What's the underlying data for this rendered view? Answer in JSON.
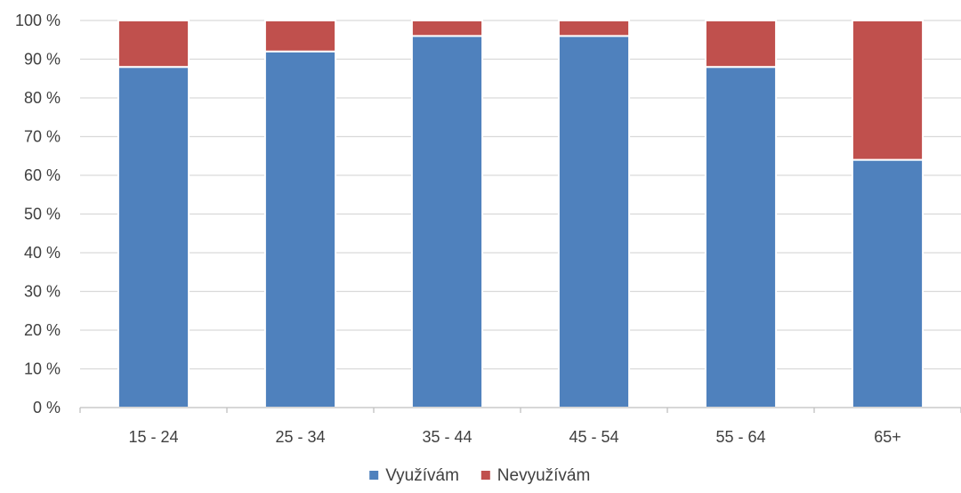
{
  "chart_data": {
    "type": "bar",
    "stacked": true,
    "percent": true,
    "categories": [
      "15 - 24",
      "25 - 34",
      "35 - 44",
      "45 - 54",
      "55 - 64",
      "65+"
    ],
    "series": [
      {
        "name": "Využívám",
        "values": [
          88,
          92,
          96,
          96,
          88,
          64
        ],
        "color": "#4f81bd"
      },
      {
        "name": "Nevyužívám",
        "values": [
          12,
          8,
          4,
          4,
          12,
          36
        ],
        "color": "#c0504d"
      }
    ],
    "yticks": [
      "0 %",
      "10 %",
      "20 %",
      "30 %",
      "40 %",
      "50 %",
      "60 %",
      "70 %",
      "80 %",
      "90 %",
      "100 %"
    ],
    "ylim": [
      0,
      100
    ],
    "grid": true,
    "legend_position": "bottom",
    "title": "",
    "xlabel": "",
    "ylabel": ""
  }
}
